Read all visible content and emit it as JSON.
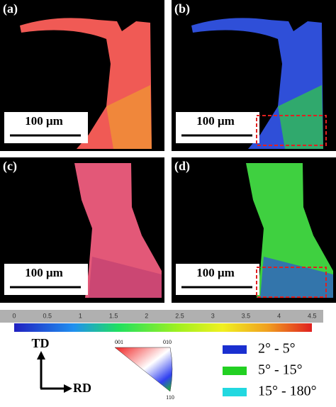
{
  "panels": [
    {
      "label": "(a)",
      "scale_bar": "100 μm"
    },
    {
      "label": "(b)",
      "scale_bar": "100 μm"
    },
    {
      "label": "(c)",
      "scale_bar": "100 μm"
    },
    {
      "label": "(d)",
      "scale_bar": "100 μm"
    }
  ],
  "color_bar": {
    "ticks": [
      0,
      0.5,
      1,
      1.5,
      2,
      2.5,
      3,
      3.5,
      4,
      4.5
    ]
  },
  "ipf_triangle": {
    "labels": [
      "001",
      "010",
      "110"
    ]
  },
  "axes": {
    "td": "TD",
    "rd": "RD"
  },
  "legend": [
    {
      "label": "2° - 5°",
      "color": "#1a2fd0"
    },
    {
      "label": "5° - 15°",
      "color": "#22d022"
    },
    {
      "label": "15° - 180°",
      "color": "#22d8e0"
    }
  ]
}
